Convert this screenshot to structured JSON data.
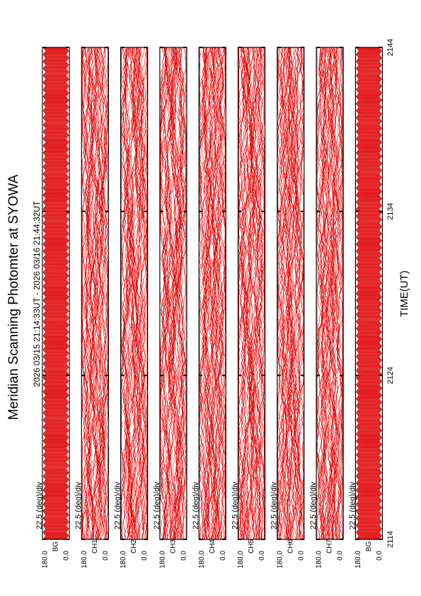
{
  "chart_data": {
    "type": "strip",
    "title": "Meridian Scanning Photomter at SYOWA",
    "subtitle": "2026 03/15 21:14:33UT - 2026 03/16 21:44:32UT",
    "xlabel": "TIME(UT)",
    "xlim": [
      2114,
      2144
    ],
    "xticks": [
      2114,
      2124,
      2134,
      2144
    ],
    "ylim": [
      0,
      180
    ],
    "yticks": [
      {
        "value": 0,
        "label": "0.0"
      },
      {
        "value": 180,
        "label": "180.0"
      }
    ],
    "scale_label": "22.5 (deg)/div",
    "color": "#e00000",
    "panels": [
      "BG",
      "CH1",
      "CH2",
      "CH3",
      "CH4",
      "CH5",
      "CH6",
      "CH7",
      "BG"
    ]
  }
}
